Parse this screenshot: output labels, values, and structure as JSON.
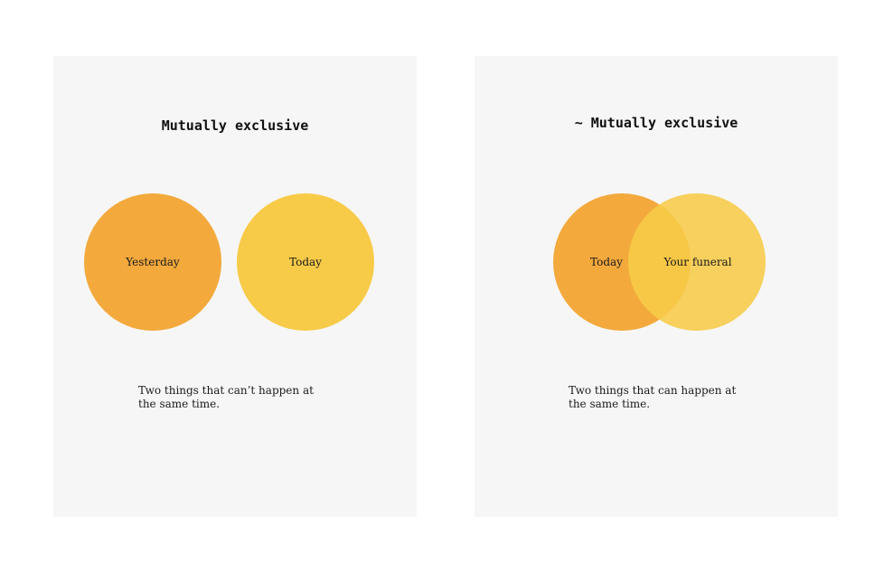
{
  "colors": {
    "background": "#ffffff",
    "panel": "#f6f6f6",
    "orange": "#f3a93c",
    "yellow": "#f7cb48"
  },
  "panels": [
    {
      "title": "Mutually exclusive",
      "circles": [
        {
          "label": "Yesterday",
          "color": "orange"
        },
        {
          "label": "Today",
          "color": "yellow"
        }
      ],
      "caption": "Two things that can’t happen at the same time."
    },
    {
      "title": "~ Mutually exclusive",
      "circles": [
        {
          "label": "Today",
          "color": "orange"
        },
        {
          "label": "Your funeral",
          "color": "yellow"
        }
      ],
      "caption": "Two things that can happen at the same time."
    }
  ]
}
